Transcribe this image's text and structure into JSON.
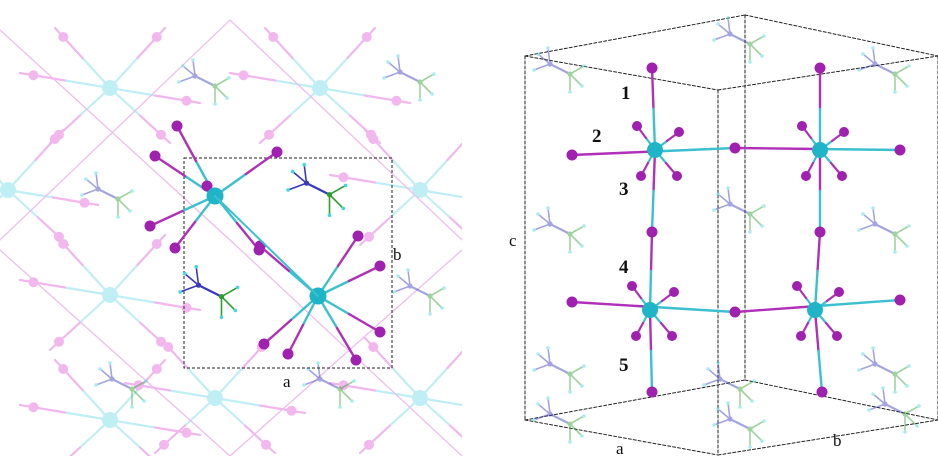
{
  "left_panel": {
    "axis_labels": {
      "a": "a",
      "b": "b"
    }
  },
  "right_panel": {
    "axis_labels": {
      "a": "a",
      "b": "b",
      "c": "c"
    },
    "layer_labels": [
      "1",
      "2",
      "3",
      "4",
      "5"
    ]
  },
  "colors": {
    "metal": "#1fb4c8",
    "halide": "#a020b0",
    "bond_metal": "#3cc0d0",
    "bond_halide": "#b030b8",
    "nitrogen": "#3838c0",
    "carbon": "#2aa02a",
    "hydrogen": "#40d8e0",
    "faded_metal": "#bfeff5",
    "faded_halide": "#f2b8ee",
    "cell_edge": "#222222"
  }
}
